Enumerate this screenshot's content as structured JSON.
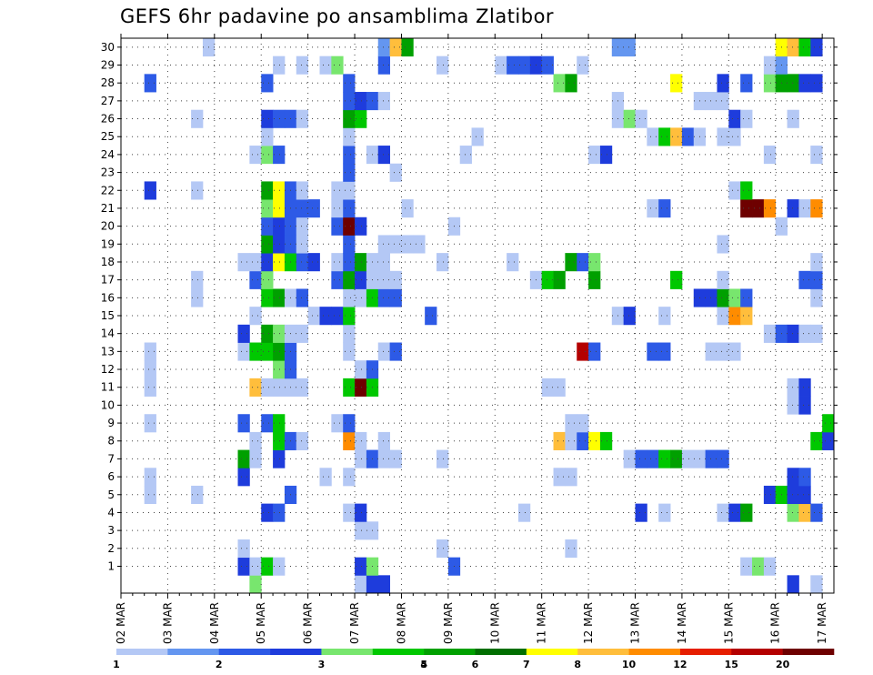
{
  "chart_data": {
    "type": "heatmap",
    "title": "GEFS 6hr padavine po ansamblima Zlatibor",
    "x_tick_labels": [
      "02 MAR",
      "03 MAR",
      "04 MAR",
      "05 MAR",
      "06 MAR",
      "07 MAR",
      "08 MAR",
      "09 MAR",
      "10 MAR",
      "11 MAR",
      "12 MAR",
      "13 MAR",
      "14 MAR",
      "15 MAR",
      "16 MAR",
      "17 MAR"
    ],
    "x_steps": 61,
    "steps_per_day": 4,
    "y_tick_labels": [
      "1",
      "2",
      "3",
      "4",
      "5",
      "6",
      "7",
      "8",
      "9",
      "10",
      "11",
      "12",
      "13",
      "14",
      "15",
      "16",
      "17",
      "18",
      "19",
      "20",
      "21",
      "22",
      "23",
      "24",
      "25",
      "26",
      "27",
      "28",
      "29",
      "30"
    ],
    "y_range": [
      0,
      30
    ],
    "grid": true,
    "colorbar": {
      "labels": [
        "1",
        "2",
        "3",
        "4",
        "5",
        "6",
        "7",
        "8",
        "10",
        "12",
        "15",
        "20"
      ],
      "colors": [
        "#b4c8f5",
        "#6496f0",
        "#2d5ae6",
        "#1e3cdc",
        "#78e66e",
        "#00c800",
        "#00a000",
        "#006e00",
        "#ffff00",
        "#ffbe3c",
        "#ff8c00",
        "#e61e00",
        "#b40000",
        "#6e0000"
      ]
    },
    "members": {
      "30": [
        [
          7,
          0
        ],
        [
          22,
          1
        ],
        [
          23,
          9
        ],
        [
          24,
          6
        ],
        [
          42,
          1
        ],
        [
          43,
          1
        ],
        [
          56,
          8
        ],
        [
          57,
          9
        ],
        [
          58,
          5
        ],
        [
          59,
          3
        ]
      ],
      "29": [
        [
          13,
          0
        ],
        [
          15,
          0
        ],
        [
          17,
          0
        ],
        [
          18,
          4
        ],
        [
          22,
          2
        ],
        [
          27,
          0
        ],
        [
          32,
          0
        ],
        [
          33,
          2
        ],
        [
          34,
          2
        ],
        [
          35,
          3
        ],
        [
          36,
          2
        ],
        [
          39,
          0
        ],
        [
          55,
          0
        ],
        [
          56,
          1
        ]
      ],
      "28": [
        [
          2,
          2
        ],
        [
          12,
          2
        ],
        [
          19,
          2
        ],
        [
          37,
          4
        ],
        [
          38,
          6
        ],
        [
          47,
          8
        ],
        [
          51,
          3
        ],
        [
          53,
          2
        ],
        [
          55,
          4
        ],
        [
          56,
          6
        ],
        [
          57,
          6
        ],
        [
          58,
          3
        ],
        [
          59,
          3
        ]
      ],
      "27": [
        [
          19,
          2
        ],
        [
          20,
          3
        ],
        [
          21,
          2
        ],
        [
          22,
          0
        ],
        [
          42,
          0
        ],
        [
          49,
          0
        ],
        [
          50,
          0
        ],
        [
          51,
          0
        ]
      ],
      "26": [
        [
          6,
          0
        ],
        [
          12,
          3
        ],
        [
          13,
          2
        ],
        [
          14,
          2
        ],
        [
          15,
          0
        ],
        [
          19,
          6
        ],
        [
          20,
          5
        ],
        [
          42,
          0
        ],
        [
          43,
          4
        ],
        [
          44,
          0
        ],
        [
          52,
          3
        ],
        [
          53,
          0
        ],
        [
          57,
          0
        ]
      ],
      "25": [
        [
          12,
          0
        ],
        [
          19,
          0
        ],
        [
          30,
          0
        ],
        [
          45,
          0
        ],
        [
          46,
          5
        ],
        [
          47,
          9
        ],
        [
          48,
          2
        ],
        [
          49,
          0
        ],
        [
          51,
          0
        ],
        [
          52,
          0
        ]
      ],
      "24": [
        [
          11,
          0
        ],
        [
          12,
          4
        ],
        [
          13,
          2
        ],
        [
          19,
          2
        ],
        [
          21,
          0
        ],
        [
          22,
          3
        ],
        [
          29,
          0
        ],
        [
          40,
          0
        ],
        [
          41,
          3
        ],
        [
          55,
          0
        ],
        [
          59,
          0
        ]
      ],
      "23": [
        [
          19,
          2
        ],
        [
          23,
          0
        ]
      ],
      "22": [
        [
          2,
          3
        ],
        [
          6,
          0
        ],
        [
          12,
          6
        ],
        [
          13,
          8
        ],
        [
          14,
          2
        ],
        [
          15,
          0
        ],
        [
          18,
          0
        ],
        [
          19,
          0
        ],
        [
          52,
          0
        ],
        [
          53,
          5
        ]
      ],
      "21": [
        [
          12,
          4
        ],
        [
          13,
          8
        ],
        [
          14,
          2
        ],
        [
          15,
          2
        ],
        [
          16,
          2
        ],
        [
          18,
          0
        ],
        [
          19,
          2
        ],
        [
          24,
          0
        ],
        [
          45,
          0
        ],
        [
          46,
          2
        ],
        [
          53,
          13
        ],
        [
          54,
          13
        ],
        [
          55,
          10
        ],
        [
          57,
          3
        ],
        [
          58,
          0
        ],
        [
          59,
          10
        ]
      ],
      "20": [
        [
          12,
          2
        ],
        [
          13,
          3
        ],
        [
          14,
          2
        ],
        [
          15,
          0
        ],
        [
          18,
          2
        ],
        [
          19,
          13
        ],
        [
          20,
          3
        ],
        [
          28,
          0
        ],
        [
          56,
          0
        ]
      ],
      "19": [
        [
          12,
          6
        ],
        [
          13,
          3
        ],
        [
          14,
          2
        ],
        [
          15,
          0
        ],
        [
          19,
          2
        ],
        [
          22,
          0
        ],
        [
          23,
          0
        ],
        [
          24,
          0
        ],
        [
          25,
          0
        ],
        [
          51,
          0
        ]
      ],
      "18": [
        [
          10,
          0
        ],
        [
          11,
          0
        ],
        [
          12,
          3
        ],
        [
          13,
          8
        ],
        [
          14,
          5
        ],
        [
          15,
          2
        ],
        [
          16,
          3
        ],
        [
          18,
          0
        ],
        [
          19,
          2
        ],
        [
          20,
          6
        ],
        [
          21,
          0
        ],
        [
          22,
          0
        ],
        [
          27,
          0
        ],
        [
          33,
          0
        ],
        [
          38,
          6
        ],
        [
          39,
          2
        ],
        [
          40,
          4
        ],
        [
          59,
          0
        ]
      ],
      "17": [
        [
          6,
          0
        ],
        [
          11,
          2
        ],
        [
          12,
          4
        ],
        [
          18,
          2
        ],
        [
          19,
          6
        ],
        [
          20,
          3
        ],
        [
          21,
          0
        ],
        [
          22,
          0
        ],
        [
          23,
          0
        ],
        [
          35,
          0
        ],
        [
          36,
          5
        ],
        [
          37,
          6
        ],
        [
          40,
          6
        ],
        [
          47,
          5
        ],
        [
          51,
          0
        ],
        [
          58,
          2
        ],
        [
          59,
          2
        ]
      ],
      "16": [
        [
          6,
          0
        ],
        [
          12,
          5
        ],
        [
          13,
          6
        ],
        [
          14,
          0
        ],
        [
          15,
          2
        ],
        [
          19,
          0
        ],
        [
          20,
          0
        ],
        [
          21,
          5
        ],
        [
          22,
          2
        ],
        [
          23,
          2
        ],
        [
          49,
          3
        ],
        [
          50,
          3
        ],
        [
          51,
          6
        ],
        [
          52,
          4
        ],
        [
          53,
          2
        ],
        [
          59,
          0
        ]
      ],
      "15": [
        [
          11,
          0
        ],
        [
          16,
          0
        ],
        [
          17,
          3
        ],
        [
          18,
          3
        ],
        [
          19,
          5
        ],
        [
          26,
          2
        ],
        [
          42,
          0
        ],
        [
          43,
          3
        ],
        [
          46,
          0
        ],
        [
          51,
          0
        ],
        [
          52,
          10
        ],
        [
          53,
          9
        ]
      ],
      "14": [
        [
          10,
          3
        ],
        [
          12,
          6
        ],
        [
          13,
          4
        ],
        [
          14,
          0
        ],
        [
          15,
          0
        ],
        [
          19,
          0
        ],
        [
          55,
          0
        ],
        [
          56,
          2
        ],
        [
          57,
          3
        ],
        [
          58,
          0
        ],
        [
          59,
          0
        ]
      ],
      "13": [
        [
          2,
          0
        ],
        [
          10,
          0
        ],
        [
          11,
          5
        ],
        [
          12,
          5
        ],
        [
          13,
          6
        ],
        [
          14,
          2
        ],
        [
          19,
          0
        ],
        [
          22,
          0
        ],
        [
          23,
          2
        ],
        [
          39,
          12
        ],
        [
          40,
          2
        ],
        [
          45,
          2
        ],
        [
          46,
          2
        ],
        [
          50,
          0
        ],
        [
          51,
          0
        ],
        [
          52,
          0
        ]
      ],
      "12": [
        [
          2,
          0
        ],
        [
          13,
          4
        ],
        [
          14,
          2
        ],
        [
          20,
          0
        ],
        [
          21,
          2
        ]
      ],
      "11": [
        [
          2,
          0
        ],
        [
          11,
          9
        ],
        [
          12,
          0
        ],
        [
          13,
          0
        ],
        [
          14,
          0
        ],
        [
          15,
          0
        ],
        [
          19,
          5
        ],
        [
          20,
          13
        ],
        [
          21,
          5
        ],
        [
          36,
          0
        ],
        [
          37,
          0
        ],
        [
          57,
          0
        ],
        [
          58,
          3
        ]
      ],
      "10": [
        [
          57,
          0
        ],
        [
          58,
          3
        ]
      ],
      "9": [
        [
          2,
          0
        ],
        [
          10,
          2
        ],
        [
          12,
          2
        ],
        [
          13,
          5
        ],
        [
          18,
          0
        ],
        [
          19,
          2
        ],
        [
          38,
          0
        ],
        [
          39,
          0
        ],
        [
          60,
          5
        ]
      ],
      "8": [
        [
          11,
          0
        ],
        [
          13,
          5
        ],
        [
          14,
          2
        ],
        [
          15,
          0
        ],
        [
          19,
          10
        ],
        [
          20,
          0
        ],
        [
          22,
          0
        ],
        [
          37,
          9
        ],
        [
          38,
          0
        ],
        [
          39,
          2
        ],
        [
          40,
          8
        ],
        [
          41,
          5
        ],
        [
          59,
          5
        ],
        [
          60,
          3
        ]
      ],
      "7": [
        [
          10,
          6
        ],
        [
          11,
          0
        ],
        [
          13,
          3
        ],
        [
          20,
          0
        ],
        [
          21,
          2
        ],
        [
          22,
          0
        ],
        [
          23,
          0
        ],
        [
          27,
          0
        ],
        [
          43,
          0
        ],
        [
          44,
          2
        ],
        [
          45,
          2
        ],
        [
          46,
          5
        ],
        [
          47,
          6
        ],
        [
          48,
          0
        ],
        [
          49,
          0
        ],
        [
          50,
          2
        ],
        [
          51,
          2
        ]
      ],
      "6": [
        [
          2,
          0
        ],
        [
          10,
          3
        ],
        [
          17,
          0
        ],
        [
          19,
          0
        ],
        [
          37,
          0
        ],
        [
          38,
          0
        ],
        [
          57,
          3
        ],
        [
          58,
          2
        ]
      ],
      "5": [
        [
          2,
          0
        ],
        [
          6,
          0
        ],
        [
          14,
          2
        ],
        [
          55,
          3
        ],
        [
          56,
          5
        ],
        [
          57,
          3
        ],
        [
          58,
          3
        ]
      ],
      "4": [
        [
          12,
          3
        ],
        [
          13,
          2
        ],
        [
          19,
          0
        ],
        [
          20,
          3
        ],
        [
          34,
          0
        ],
        [
          44,
          3
        ],
        [
          46,
          0
        ],
        [
          51,
          0
        ],
        [
          52,
          3
        ],
        [
          53,
          6
        ],
        [
          57,
          4
        ],
        [
          58,
          9
        ],
        [
          59,
          2
        ]
      ],
      "3": [
        [
          20,
          0
        ],
        [
          21,
          0
        ]
      ],
      "2": [
        [
          10,
          0
        ],
        [
          27,
          0
        ],
        [
          38,
          0
        ]
      ],
      "1": [
        [
          10,
          3
        ],
        [
          11,
          0
        ],
        [
          12,
          5
        ],
        [
          13,
          0
        ],
        [
          20,
          3
        ],
        [
          21,
          4
        ],
        [
          28,
          2
        ],
        [
          53,
          0
        ],
        [
          54,
          4
        ],
        [
          55,
          0
        ]
      ],
      "0": [
        [
          11,
          4
        ],
        [
          20,
          0
        ],
        [
          21,
          3
        ],
        [
          22,
          3
        ],
        [
          57,
          3
        ],
        [
          59,
          0
        ]
      ]
    }
  }
}
